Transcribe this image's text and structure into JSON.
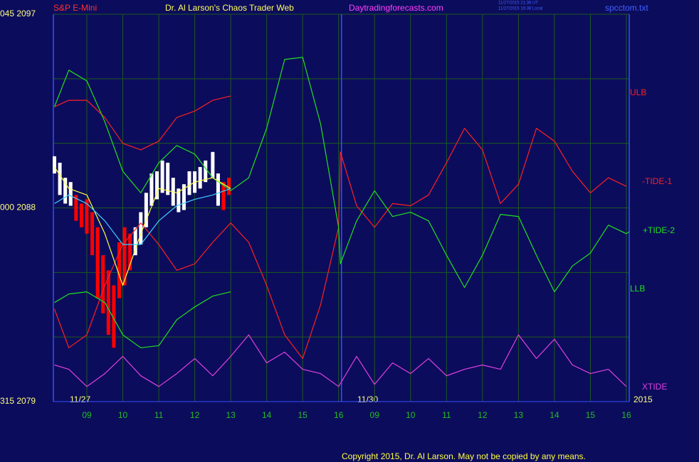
{
  "chart_data": {
    "type": "line",
    "title": "S&P E-Mini",
    "subtitle": "Dr. Al Larson's Chaos Trader Web",
    "site": "Daytradingforecasts.com",
    "timestamps": [
      "11/27/2015 21:38 UT",
      "11/27/2015 16:38 Local"
    ],
    "file": "spcctom.txt",
    "day_labels": [
      "11/27",
      "11/30"
    ],
    "year": "2015",
    "copyright": "Copyright 2015, Dr. Al Larson. May not be copied by any means.",
    "xlim": [
      8.07,
      24.08
    ],
    "xticks": [
      {
        "value": 9,
        "label": "09"
      },
      10,
      11,
      12,
      13,
      14,
      15,
      16,
      {
        "value": 17,
        "label": "09"
      },
      {
        "value": 18,
        "label": "10"
      },
      {
        "value": 19,
        "label": "11"
      },
      {
        "value": 20,
        "label": "12"
      },
      {
        "value": 21,
        "label": "13"
      },
      {
        "value": 22,
        "label": "14"
      },
      {
        "value": 23,
        "label": "15"
      },
      {
        "value": 24,
        "label": "16"
      }
    ],
    "ylim": [
      2079,
      2097
    ],
    "yticks": [
      {
        "value": 2097,
        "label": "045  2097"
      },
      {
        "value": 2094,
        "label": null
      },
      {
        "value": 2091,
        "label": null
      },
      {
        "value": 2088,
        "label": "000  2088"
      },
      {
        "value": 2085,
        "label": null
      },
      {
        "value": 2082,
        "label": null
      },
      {
        "value": 2079,
        "label": "315  2079"
      }
    ],
    "grid": true,
    "divider_x": 16.08,
    "series": [
      {
        "name": "ULB",
        "color": "#ff2020",
        "x": [
          8.1,
          8.5,
          9,
          9.5,
          10,
          10.5,
          11,
          11.5,
          12,
          12.5,
          13
        ],
        "values": [
          2092.7,
          2093.0,
          2093.0,
          2092.2,
          2091.0,
          2090.7,
          2091.1,
          2092.2,
          2092.5,
          2093.0,
          2093.2
        ]
      },
      {
        "name": "-TIDE-1",
        "color": "#ff2020",
        "x": [
          8.1,
          8.5,
          9,
          9.5,
          10,
          10.5,
          11,
          11.5,
          12,
          12.5,
          13,
          13.5,
          14,
          14.5,
          15,
          15.5,
          16,
          16.05,
          16.5,
          17,
          17.5,
          18,
          18.5,
          19,
          19.5,
          20,
          20.5,
          21,
          21.5,
          22,
          22.5,
          23,
          23.5,
          24
        ],
        "values": [
          2083.3,
          2081.5,
          2082.1,
          2084.4,
          2086.3,
          2087.3,
          2086.3,
          2085.1,
          2085.4,
          2086.4,
          2087.3,
          2086.4,
          2084.4,
          2082.1,
          2081.0,
          2083.5,
          2087.1,
          2090.6,
          2088.1,
          2087.1,
          2088.2,
          2088.1,
          2088.6,
          2090.1,
          2091.7,
          2090.7,
          2088.2,
          2089.1,
          2091.7,
          2091.1,
          2089.7,
          2088.7,
          2089.4,
          2089.0
        ]
      },
      {
        "name": "+TIDE-2",
        "color": "#20e020",
        "x": [
          8.1,
          8.5,
          9,
          9.5,
          10,
          10.5,
          11,
          11.5,
          12,
          12.5,
          13,
          13.5,
          14,
          14.5,
          15,
          15.5,
          16,
          16.05,
          16.5,
          17,
          17.5,
          18,
          18.5,
          19,
          19.5,
          20,
          20.5,
          21,
          21.5,
          22,
          22.5,
          23,
          23.5,
          24,
          24.08
        ],
        "values": [
          2092.7,
          2094.4,
          2093.9,
          2092.0,
          2089.7,
          2088.7,
          2090.1,
          2090.9,
          2090.5,
          2089.4,
          2088.8,
          2089.4,
          2091.7,
          2094.9,
          2095.0,
          2091.9,
          2087.1,
          2085.4,
          2087.4,
          2088.8,
          2087.6,
          2087.8,
          2087.4,
          2085.8,
          2084.3,
          2085.8,
          2087.7,
          2087.6,
          2085.8,
          2084.1,
          2085.3,
          2085.9,
          2087.2,
          2086.8,
          2086.9
        ]
      },
      {
        "name": "LLB",
        "color": "#20e020",
        "x": [
          8.1,
          8.5,
          9,
          9.5,
          10,
          10.5,
          11,
          11.5,
          12,
          12.5,
          13
        ],
        "values": [
          2083.6,
          2084.0,
          2084.1,
          2083.6,
          2082.1,
          2081.5,
          2081.6,
          2082.8,
          2083.4,
          2083.9,
          2084.1
        ]
      },
      {
        "name": "XTIDE",
        "color": "#e040e0",
        "x": [
          8.1,
          8.5,
          9,
          9.5,
          10,
          10.5,
          11,
          11.5,
          12,
          12.5,
          13,
          13.5,
          14,
          14.5,
          15,
          15.5,
          16,
          16.5,
          17,
          17.5,
          18,
          18.5,
          19,
          19.5,
          20,
          20.5,
          21,
          21.5,
          22,
          22.5,
          23,
          23.5,
          24
        ],
        "values": [
          2080.7,
          2080.5,
          2079.7,
          2080.3,
          2081.1,
          2080.2,
          2079.7,
          2080.3,
          2081.0,
          2080.2,
          2081.1,
          2082.1,
          2080.8,
          2081.3,
          2080.5,
          2080.3,
          2079.7,
          2081.1,
          2079.8,
          2080.8,
          2080.3,
          2081.0,
          2080.2,
          2080.5,
          2080.7,
          2080.5,
          2082.1,
          2081.0,
          2081.9,
          2080.7,
          2080.3,
          2080.5,
          2079.7
        ]
      },
      {
        "color": "#ffff40",
        "x": [
          8.1,
          8.5,
          9,
          9.5,
          10,
          10.5,
          11,
          11.5,
          12,
          12.5,
          13
        ],
        "values": [
          2089.9,
          2088.9,
          2088.6,
          2086.8,
          2084.4,
          2086.8,
          2088.9,
          2088.7,
          2089.2,
          2089.4,
          2088.9
        ]
      },
      {
        "color": "#40d0ff",
        "x": [
          8.1,
          8.5,
          9,
          9.5,
          10,
          10.5,
          11,
          11.5,
          12,
          12.5,
          13
        ],
        "values": [
          2088.2,
          2088.6,
          2088.2,
          2087.4,
          2086.3,
          2086.3,
          2087.4,
          2088.1,
          2088.4,
          2088.6,
          2088.9
        ]
      }
    ],
    "bars": {
      "x": [
        8.1,
        8.25,
        8.4,
        8.55,
        8.7,
        8.85,
        9.0,
        9.15,
        9.3,
        9.45,
        9.6,
        9.75,
        9.9,
        10.05,
        10.2,
        10.35,
        10.5,
        10.65,
        10.8,
        10.95,
        11.1,
        11.25,
        11.4,
        11.55,
        11.7,
        11.85,
        12.0,
        12.15,
        12.3,
        12.5,
        12.65,
        12.8,
        12.95
      ],
      "high": [
        2090.4,
        2090.1,
        2089.4,
        2089.2,
        2088.6,
        2088.2,
        2088.4,
        2087.8,
        2087.1,
        2085.8,
        2085.1,
        2084.4,
        2086.4,
        2087.1,
        2086.8,
        2087.1,
        2087.8,
        2088.7,
        2089.6,
        2089.7,
        2090.2,
        2090.1,
        2089.4,
        2088.9,
        2089.1,
        2089.7,
        2089.7,
        2089.9,
        2090.2,
        2090.6,
        2089.6,
        2089.2,
        2089.4
      ],
      "low": [
        2089.6,
        2088.6,
        2088.2,
        2088.1,
        2087.4,
        2087.1,
        2086.8,
        2085.8,
        2083.8,
        2083.1,
        2082.1,
        2081.5,
        2083.8,
        2084.4,
        2085.1,
        2085.8,
        2086.3,
        2087.1,
        2088.1,
        2088.4,
        2088.7,
        2088.6,
        2088.1,
        2087.8,
        2087.9,
        2088.6,
        2088.7,
        2088.9,
        2089.2,
        2089.4,
        2088.1,
        2087.9,
        2088.6
      ],
      "colors": [
        "#ffffff",
        "#ffffff",
        "#ffffff",
        "#ffffff",
        "#ff0000",
        "#ff0000",
        "#ff0000",
        "#ff0000",
        "#ff0000",
        "#ff0000",
        "#ff0000",
        "#ff0000",
        "#ff0000",
        "#ff0000",
        "#ff0000",
        "#ffffff",
        "#ffffff",
        "#ffffff",
        "#ffffff",
        "#ffffff",
        "#ffffff",
        "#ffffff",
        "#ffffff",
        "#ffffff",
        "#ffffff",
        "#ffffff",
        "#ffffff",
        "#ffffff",
        "#ffffff",
        "#ffffff",
        "#ffffff",
        "#ff0000",
        "#ff0000"
      ]
    }
  }
}
